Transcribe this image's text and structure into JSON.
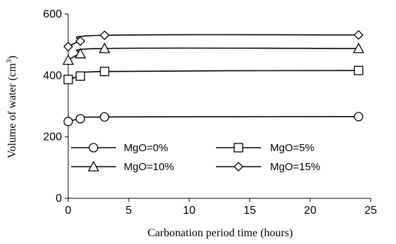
{
  "chart_data": {
    "type": "line",
    "xlabel": "Carbonation period time (hours)",
    "ylabel": "Volume of  water (cm",
    "ylabel_sup": "3",
    "ylabel_close": ")",
    "xlim": [
      0,
      25
    ],
    "ylim": [
      0,
      600
    ],
    "xticks": [
      0,
      5,
      10,
      15,
      20,
      25
    ],
    "yticks": [
      0,
      200,
      400,
      600
    ],
    "grid": false,
    "legend_position": "lower-center",
    "series": [
      {
        "name": "MgO=0%",
        "marker": "circle",
        "x": [
          0,
          1,
          3,
          24
        ],
        "y": [
          250,
          259,
          265,
          266
        ]
      },
      {
        "name": "MgO=5%",
        "marker": "square",
        "x": [
          0,
          1,
          3,
          24
        ],
        "y": [
          387,
          398,
          413,
          416
        ]
      },
      {
        "name": "MgO=10%",
        "marker": "triangle",
        "x": [
          0,
          1,
          3,
          24
        ],
        "y": [
          450,
          471,
          488,
          488
        ]
      },
      {
        "name": "MgO=15%",
        "marker": "diamond",
        "x": [
          0,
          1,
          3,
          24
        ],
        "y": [
          494,
          512,
          531,
          532
        ]
      }
    ],
    "colors": {
      "line": "#000000",
      "marker_fill": "#ffffff"
    }
  }
}
